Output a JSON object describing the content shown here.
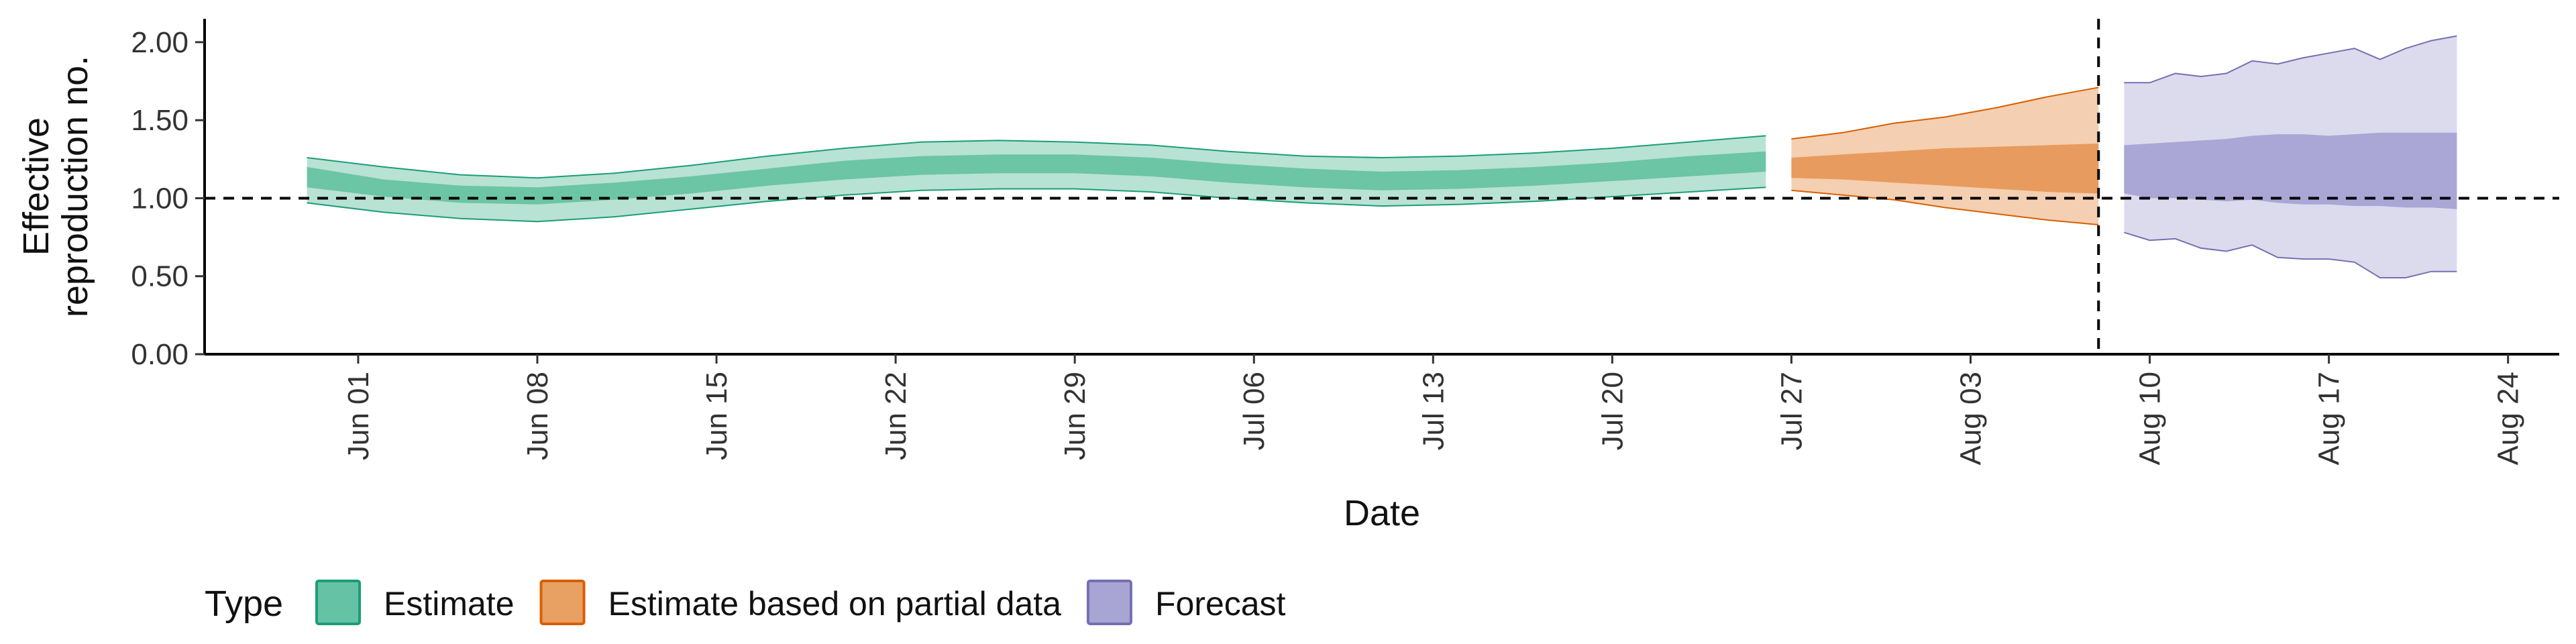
{
  "chart_data": {
    "type": "area",
    "xlabel": "Date",
    "ylabel_lines": [
      "Effective",
      "reproduction no."
    ],
    "ylim": [
      0,
      2.15
    ],
    "xlim": [
      "2020-05-26",
      "2020-08-26"
    ],
    "y_ticks": [
      {
        "value": 0,
        "label": "0.00"
      },
      {
        "value": 0.5,
        "label": "0.50"
      },
      {
        "value": 1.0,
        "label": "1.00"
      },
      {
        "value": 1.5,
        "label": "1.50"
      },
      {
        "value": 2.0,
        "label": "2.00"
      }
    ],
    "x_ticks": [
      {
        "date": "2020-06-01",
        "label": "Jun 01"
      },
      {
        "date": "2020-06-08",
        "label": "Jun 08"
      },
      {
        "date": "2020-06-15",
        "label": "Jun 15"
      },
      {
        "date": "2020-06-22",
        "label": "Jun 22"
      },
      {
        "date": "2020-06-29",
        "label": "Jun 29"
      },
      {
        "date": "2020-07-06",
        "label": "Jul 06"
      },
      {
        "date": "2020-07-13",
        "label": "Jul 13"
      },
      {
        "date": "2020-07-20",
        "label": "Jul 20"
      },
      {
        "date": "2020-07-27",
        "label": "Jul 27"
      },
      {
        "date": "2020-08-03",
        "label": "Aug 03"
      },
      {
        "date": "2020-08-10",
        "label": "Aug 10"
      },
      {
        "date": "2020-08-17",
        "label": "Aug 17"
      },
      {
        "date": "2020-08-24",
        "label": "Aug 24"
      }
    ],
    "reference_lines": {
      "horizontal_y": 1.0,
      "vertical_date": "2020-08-08"
    },
    "grid": false,
    "legend": {
      "position": "bottom-left",
      "title": "Type",
      "entries": [
        {
          "label": "Estimate",
          "fill": "#66c2a5",
          "stroke": "#1b9e77"
        },
        {
          "label": "Estimate based on partial data",
          "fill": "#e8a063",
          "stroke": "#d95f02"
        },
        {
          "label": "Forecast",
          "fill": "#a8a4d4",
          "stroke": "#7570b3"
        }
      ]
    },
    "series": [
      {
        "type_label": "Estimate",
        "color_outer": "#b8e2d4",
        "color_inner": "#6cc5a5",
        "line_color": "#1b9e77",
        "x": [
          "2020-05-30",
          "2020-06-02",
          "2020-06-05",
          "2020-06-08",
          "2020-06-11",
          "2020-06-14",
          "2020-06-17",
          "2020-06-20",
          "2020-06-23",
          "2020-06-26",
          "2020-06-29",
          "2020-07-02",
          "2020-07-05",
          "2020-07-08",
          "2020-07-11",
          "2020-07-14",
          "2020-07-17",
          "2020-07-20",
          "2020-07-23",
          "2020-07-26"
        ],
        "outer_low": [
          0.97,
          0.91,
          0.87,
          0.85,
          0.88,
          0.93,
          0.98,
          1.02,
          1.05,
          1.06,
          1.06,
          1.04,
          1.0,
          0.97,
          0.95,
          0.96,
          0.98,
          1.01,
          1.04,
          1.07
        ],
        "inner_low": [
          1.07,
          1.01,
          0.97,
          0.96,
          0.99,
          1.03,
          1.08,
          1.12,
          1.15,
          1.16,
          1.16,
          1.14,
          1.1,
          1.07,
          1.05,
          1.06,
          1.08,
          1.11,
          1.14,
          1.17
        ],
        "inner_high": [
          1.2,
          1.12,
          1.08,
          1.07,
          1.1,
          1.14,
          1.19,
          1.24,
          1.27,
          1.28,
          1.28,
          1.26,
          1.22,
          1.19,
          1.17,
          1.18,
          1.2,
          1.23,
          1.27,
          1.3
        ],
        "outer_high": [
          1.26,
          1.2,
          1.15,
          1.13,
          1.16,
          1.21,
          1.27,
          1.32,
          1.36,
          1.37,
          1.36,
          1.34,
          1.3,
          1.27,
          1.26,
          1.27,
          1.29,
          1.32,
          1.36,
          1.4
        ]
      },
      {
        "type_label": "Estimate based on partial data",
        "color_outer": "#f4cfb1",
        "color_inner": "#e89b5e",
        "line_color": "#d95f02",
        "x": [
          "2020-07-27",
          "2020-07-29",
          "2020-07-31",
          "2020-08-02",
          "2020-08-04",
          "2020-08-06",
          "2020-08-08"
        ],
        "outer_low": [
          1.05,
          1.02,
          0.99,
          0.94,
          0.9,
          0.86,
          0.83
        ],
        "inner_low": [
          1.13,
          1.12,
          1.1,
          1.08,
          1.06,
          1.04,
          1.03
        ],
        "inner_high": [
          1.26,
          1.28,
          1.3,
          1.32,
          1.33,
          1.34,
          1.35
        ],
        "outer_high": [
          1.38,
          1.42,
          1.48,
          1.52,
          1.58,
          1.65,
          1.71
        ]
      },
      {
        "type_label": "Forecast",
        "color_outer": "#dcdbee",
        "color_inner": "#aaa6d6",
        "line_color": "#7570b3",
        "x": [
          "2020-08-09",
          "2020-08-10",
          "2020-08-11",
          "2020-08-12",
          "2020-08-13",
          "2020-08-14",
          "2020-08-15",
          "2020-08-16",
          "2020-08-17",
          "2020-08-18",
          "2020-08-19",
          "2020-08-20",
          "2020-08-21",
          "2020-08-22"
        ],
        "outer_low": [
          0.78,
          0.73,
          0.74,
          0.68,
          0.66,
          0.7,
          0.62,
          0.61,
          0.61,
          0.59,
          0.49,
          0.49,
          0.53,
          0.53
        ],
        "inner_low": [
          1.03,
          1.0,
          1.0,
          0.99,
          0.98,
          0.99,
          0.97,
          0.96,
          0.96,
          0.95,
          0.95,
          0.94,
          0.94,
          0.93
        ],
        "inner_high": [
          1.34,
          1.35,
          1.36,
          1.37,
          1.38,
          1.4,
          1.41,
          1.41,
          1.4,
          1.41,
          1.42,
          1.42,
          1.42,
          1.42
        ],
        "outer_high": [
          1.74,
          1.74,
          1.8,
          1.78,
          1.8,
          1.88,
          1.86,
          1.9,
          1.93,
          1.96,
          1.89,
          1.96,
          2.01,
          2.04
        ]
      }
    ]
  }
}
